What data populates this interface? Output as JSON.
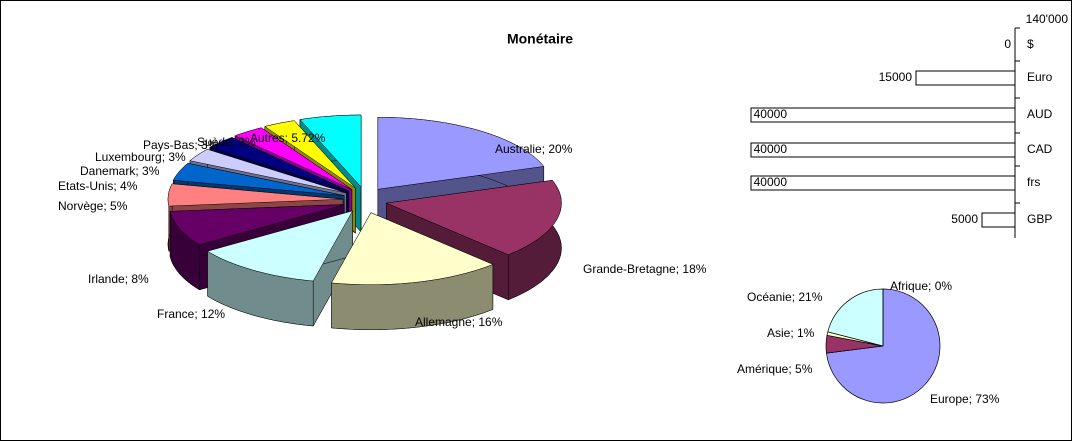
{
  "chart_data": [
    {
      "type": "pie3d",
      "title": "Monétaire",
      "values": [
        20,
        18,
        16,
        12,
        8,
        5,
        4,
        3,
        3,
        3,
        3,
        5.72
      ],
      "value_labels": [
        "Australie; 20%",
        "Grande-Bretagne; 18%",
        "Allemagne; 16%",
        "France; 12%",
        "Irlande; 8%",
        "Norvège; 5%",
        "Etats-Unis; 4%",
        "Danemark; 3%",
        "Luxembourg; 3%",
        "Pays-Bas; 3%",
        "Suède; 3%",
        "Autres; 5.72%"
      ],
      "colors": [
        "#9999ff",
        "#993366",
        "#ffffcc",
        "#ccffff",
        "#660066",
        "#ff8080",
        "#0066cc",
        "#ccccff",
        "#000080",
        "#ff00ff",
        "#ffff00",
        "#00ffff"
      ]
    },
    {
      "type": "hbar",
      "categories": [
        "$",
        "Euro",
        "AUD",
        "CAD",
        "frs",
        "GBP"
      ],
      "values": [
        0,
        15000,
        40000,
        40000,
        40000,
        5000
      ],
      "color": "#ffffff",
      "xlim": [
        0,
        140000
      ],
      "annotation": "140'000"
    },
    {
      "type": "pie",
      "values": [
        73,
        5,
        1,
        21,
        0
      ],
      "value_labels": [
        "Europe; 73%",
        "Amérique; 5%",
        "Asie; 1%",
        "Océanie; 21%",
        "Afrique; 0%"
      ],
      "colors": [
        "#9999ff",
        "#993366",
        "#ffffcc",
        "#ccffff",
        "#660066"
      ]
    }
  ]
}
